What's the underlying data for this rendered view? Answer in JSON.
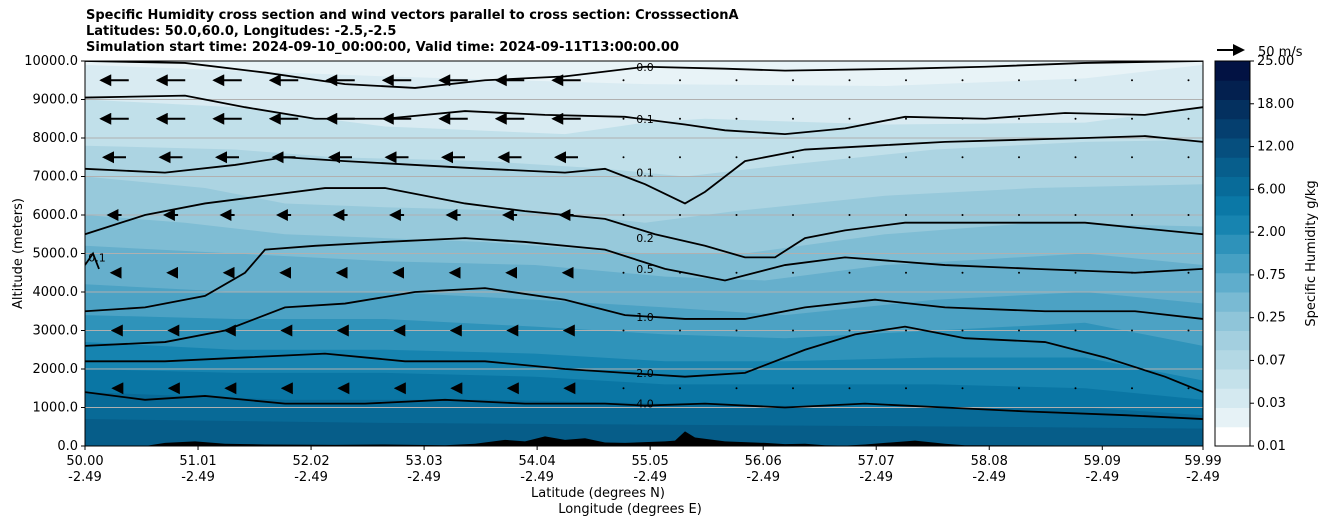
{
  "chart_data": {
    "type": "heatmap",
    "title_lines": [
      "Specific Humidity cross section and wind vectors parallel to cross section: CrosssectionA",
      "Latitudes: 50.0,60.0, Longitudes: -2.5,-2.5",
      "Simulation start time: 2024-09-10_00:00:00, Valid time: 2024-09-11T13:00:00.00"
    ],
    "ylabel": "Altitude (meters)",
    "xlabel_lines": [
      "Latitude (degrees N)",
      "Longitude (degrees E)"
    ],
    "ylim": [
      0,
      10000
    ],
    "xlim": [
      50.0,
      59.99
    ],
    "grid": "horizontal",
    "y_ticks": [
      "0.0",
      "1000.0",
      "2000.0",
      "3000.0",
      "4000.0",
      "5000.0",
      "6000.0",
      "7000.0",
      "8000.0",
      "9000.0",
      "10000.0"
    ],
    "x_ticks": [
      {
        "lat": "50.00",
        "lon": "-2.49"
      },
      {
        "lat": "51.01",
        "lon": "-2.49"
      },
      {
        "lat": "52.02",
        "lon": "-2.49"
      },
      {
        "lat": "53.03",
        "lon": "-2.49"
      },
      {
        "lat": "54.04",
        "lon": "-2.49"
      },
      {
        "lat": "55.05",
        "lon": "-2.49"
      },
      {
        "lat": "56.06",
        "lon": "-2.49"
      },
      {
        "lat": "57.07",
        "lon": "-2.49"
      },
      {
        "lat": "58.08",
        "lon": "-2.49"
      },
      {
        "lat": "59.09",
        "lon": "-2.49"
      },
      {
        "lat": "59.99",
        "lon": "-2.49"
      }
    ],
    "colorbar": {
      "label": "Specific Humidity g/kg",
      "tick_labels": [
        "0.01",
        "0.03",
        "0.07",
        "0.25",
        "0.75",
        "2.00",
        "6.00",
        "12.00",
        "18.00",
        "25.00"
      ],
      "colors": [
        "#ffffff",
        "#e6f2f6",
        "#d4e9f0",
        "#c4e1ea",
        "#b3d8e4",
        "#a3cfdf",
        "#8fc5d9",
        "#79bad3",
        "#5fadcc",
        "#46a0c3",
        "#2e92ba",
        "#1784b0",
        "#0b78a6",
        "#086b99",
        "#075e8c",
        "#064f7e",
        "#053f6f",
        "#04305f",
        "#03204f",
        "#021243"
      ]
    },
    "contour_levels": [
      "0.0",
      "0.1",
      "0.1",
      "0.1",
      "0.2",
      "0.5",
      "1.0",
      "2.0",
      "4.0"
    ],
    "quiver_key": "50 m/s",
    "wind_profile_m_s": [
      {
        "altitude": 9500,
        "west_half": -25,
        "east_half": -1
      },
      {
        "altitude": 8500,
        "west_half": -25,
        "east_half": -1
      },
      {
        "altitude": 7500,
        "west_half": -20,
        "east_half": -1
      },
      {
        "altitude": 6000,
        "west_half": -12,
        "east_half": -1
      },
      {
        "altitude": 4500,
        "west_half": -6,
        "east_half": -1
      },
      {
        "altitude": 3000,
        "west_half": -4,
        "east_half": -1
      },
      {
        "altitude": 1500,
        "west_half": -3,
        "east_half": -1
      }
    ]
  }
}
